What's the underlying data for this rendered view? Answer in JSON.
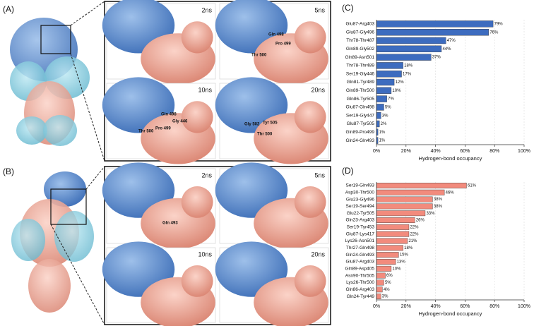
{
  "panels": [
    {
      "label": "(A)",
      "frames": [
        {
          "time": "2ns"
        },
        {
          "time": "5ns",
          "residues": [
            "Gln 498",
            "Pro 499",
            "Thr 500"
          ]
        },
        {
          "time": "10ns",
          "residues": [
            "Gln 498",
            "Gly 446",
            "Thr 500",
            "Pro 499"
          ]
        },
        {
          "time": "20ns",
          "residues": [
            "Gly 502",
            "Tyr 505",
            "Thr 500"
          ]
        }
      ]
    },
    {
      "label": "(B)",
      "frames": [
        {
          "time": "2ns",
          "residues": [
            "Gln 493"
          ]
        },
        {
          "time": "5ns"
        },
        {
          "time": "10ns"
        },
        {
          "time": "20ns"
        }
      ]
    }
  ],
  "chart_data": [
    {
      "type": "barh",
      "panel_label": "(C)",
      "x_label": "Hydrogen-bond occupancy",
      "color": "#3d6cbf",
      "grid": true,
      "categories": [
        "Glu87-Arg403",
        "Glu87-Gly496",
        "Thr78-Thr487",
        "Gln89-Gly502",
        "Gln89-Asn501",
        "Thr78-Thr489",
        "Ser19-Gly446",
        "Gln81-Tyr489",
        "Gln89-Thr500",
        "Gln86-Tyr505",
        "Glu87-Gln498",
        "Ser19-Gly447",
        "Glu87-Tyr505",
        "Gln89-Pro499",
        "Gln24-Gln493"
      ],
      "values": [
        79,
        76,
        47,
        44,
        37,
        18,
        17,
        12,
        10,
        7,
        5,
        3,
        2,
        1,
        1
      ],
      "value_labels": [
        "79%",
        "76%",
        "47%",
        "44%",
        "37%",
        "18%",
        "17%",
        "12%",
        "10%",
        "7%",
        "5%",
        "3%",
        "2%",
        "1%",
        "1%"
      ],
      "xlim": [
        0,
        100
      ],
      "xticks": [
        {
          "value": 0,
          "label": "0%"
        },
        {
          "value": 20,
          "label": "20%"
        },
        {
          "value": 40,
          "label": "40%"
        },
        {
          "value": 60,
          "label": "60%"
        },
        {
          "value": 80,
          "label": "80%"
        },
        {
          "value": 100,
          "label": "100%"
        }
      ]
    },
    {
      "type": "barh",
      "panel_label": "(D)",
      "x_label": "Hydrogen-bond occupancy",
      "color": "#f28b7d",
      "grid": true,
      "categories": [
        "Ser19-Gln493",
        "Asp30-Thr500",
        "Glu23-Gly496",
        "Ser19-Ser494",
        "Glu22-Tyr505",
        "Gln23-Arg403",
        "Ser19-Tyr453",
        "Glu87-Lys417",
        "Lys26-Asn501",
        "Thr27-Gln498",
        "Gln24-Gln493",
        "Glu87-Arg403",
        "Gln89-Asp405",
        "Asn90-Thr505",
        "Lys26-Thr500",
        "Gln86-Arg403",
        "Gln24-Tyr449"
      ],
      "values": [
        61,
        46,
        38,
        38,
        33,
        26,
        22,
        22,
        21,
        18,
        15,
        13,
        10,
        6,
        5,
        4,
        3
      ],
      "value_labels": [
        "61%",
        "46%",
        "38%",
        "38%",
        "33%",
        "26%",
        "22%",
        "22%",
        "21%",
        "18%",
        "15%",
        "13%",
        "10%",
        "6%",
        "5%",
        "4%",
        "3%"
      ],
      "xlim": [
        0,
        100
      ],
      "xticks": [
        {
          "value": 0,
          "label": "0%"
        },
        {
          "value": 20,
          "label": "20%"
        },
        {
          "value": 40,
          "label": "40%"
        },
        {
          "value": 60,
          "label": "60%"
        },
        {
          "value": 80,
          "label": "80%"
        },
        {
          "value": 100,
          "label": "100%"
        }
      ]
    }
  ]
}
